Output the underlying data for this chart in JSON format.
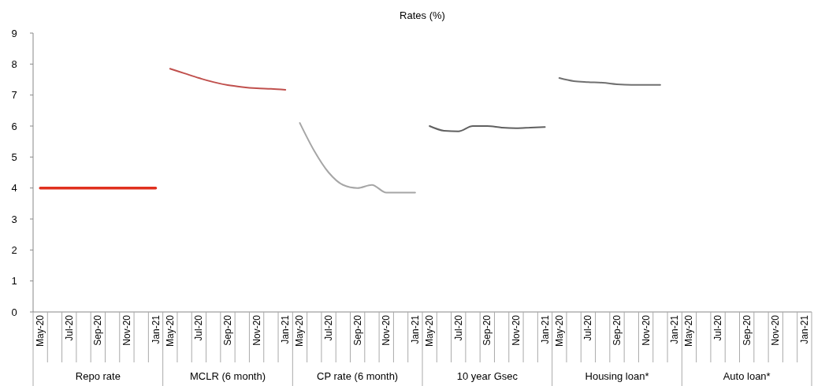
{
  "chart_data": {
    "type": "line",
    "title": "Rates (%)",
    "categories": [
      "May-20",
      null,
      "Jul-20",
      null,
      "Sep-20",
      null,
      "Nov-20",
      null,
      "Jan-21",
      "May-20",
      null,
      "Jul-20",
      null,
      "Sep-20",
      null,
      "Nov-20",
      null,
      "Jan-21",
      "May-20",
      null,
      "Jul-20",
      null,
      "Sep-20",
      null,
      "Nov-20",
      null,
      "Jan-21",
      "May-20",
      null,
      "Jul-20",
      null,
      "Sep-20",
      null,
      "Nov-20",
      null,
      "Jan-21",
      "May-20",
      null,
      "Jul-20",
      null,
      "Sep-20",
      null,
      "Nov-20",
      null,
      "Jan-21",
      "May-20",
      null,
      "Jul-20",
      null,
      "Sep-20",
      null,
      "Nov-20",
      null,
      "Jan-21"
    ],
    "series": [
      {
        "color": "#e0301e",
        "values": [
          4,
          4,
          4,
          4,
          4,
          4,
          4,
          4,
          4,
          null,
          null,
          null,
          null,
          null,
          null,
          null,
          null,
          null,
          null,
          null,
          null,
          null,
          null,
          null,
          null,
          null,
          null,
          null,
          null,
          null,
          null,
          null,
          null,
          null,
          null,
          null,
          null,
          null,
          null,
          null,
          null,
          null,
          null,
          null,
          null,
          null,
          null,
          null,
          null,
          null,
          null,
          null,
          null,
          null
        ]
      },
      {
        "color": "#c0504d",
        "values": [
          null,
          null,
          null,
          null,
          null,
          null,
          null,
          null,
          null,
          7.85,
          7.7,
          7.55,
          7.42,
          7.32,
          7.26,
          7.22,
          7.2,
          7.17,
          null,
          null,
          null,
          null,
          null,
          null,
          null,
          null,
          null,
          null,
          null,
          null,
          null,
          null,
          null,
          null,
          null,
          null,
          null,
          null,
          null,
          null,
          null,
          null,
          null,
          null,
          null,
          null,
          null,
          null,
          null,
          null,
          null,
          null,
          null,
          null
        ]
      },
      {
        "color": "#a6a6a6",
        "values": [
          null,
          null,
          null,
          null,
          null,
          null,
          null,
          null,
          null,
          null,
          null,
          null,
          null,
          null,
          null,
          null,
          null,
          null,
          6.1,
          5.2,
          4.5,
          4.1,
          4.0,
          4.1,
          3.85,
          3.85,
          3.85,
          null,
          null,
          null,
          null,
          null,
          null,
          null,
          null,
          null,
          null,
          null,
          null,
          null,
          null,
          null,
          null,
          null,
          null,
          null,
          null,
          null,
          null,
          null,
          null,
          null,
          null,
          null
        ]
      },
      {
        "color": "#606060",
        "values": [
          null,
          null,
          null,
          null,
          null,
          null,
          null,
          null,
          null,
          null,
          null,
          null,
          null,
          null,
          null,
          null,
          null,
          null,
          null,
          null,
          null,
          null,
          null,
          null,
          null,
          null,
          null,
          6.0,
          5.85,
          5.83,
          6.0,
          6.0,
          5.95,
          5.93,
          5.95,
          5.97,
          null,
          null,
          null,
          null,
          null,
          null,
          null,
          null,
          null,
          null,
          null,
          null,
          null,
          null,
          null,
          null,
          null,
          null
        ]
      },
      {
        "color": "#707070",
        "values": [
          null,
          null,
          null,
          null,
          null,
          null,
          null,
          null,
          null,
          null,
          null,
          null,
          null,
          null,
          null,
          null,
          null,
          null,
          null,
          null,
          null,
          null,
          null,
          null,
          null,
          null,
          null,
          null,
          null,
          null,
          null,
          null,
          null,
          null,
          null,
          null,
          7.55,
          7.45,
          7.42,
          7.4,
          7.35,
          7.33,
          7.33,
          7.33,
          null,
          null,
          null,
          null,
          null,
          null,
          null,
          null,
          null,
          null
        ]
      }
    ],
    "annotations": [
      "Repo rate",
      "MCLR (6 month)",
      "CP rate (6 month)",
      "10 year Gsec",
      "Housing loan*",
      "Auto loan*"
    ],
    "ylim": [
      0,
      9
    ],
    "yticks": [
      0,
      1,
      2,
      3,
      4,
      5,
      6,
      7,
      8,
      9
    ],
    "grid": false,
    "marker": "none",
    "line_style": "solid"
  }
}
